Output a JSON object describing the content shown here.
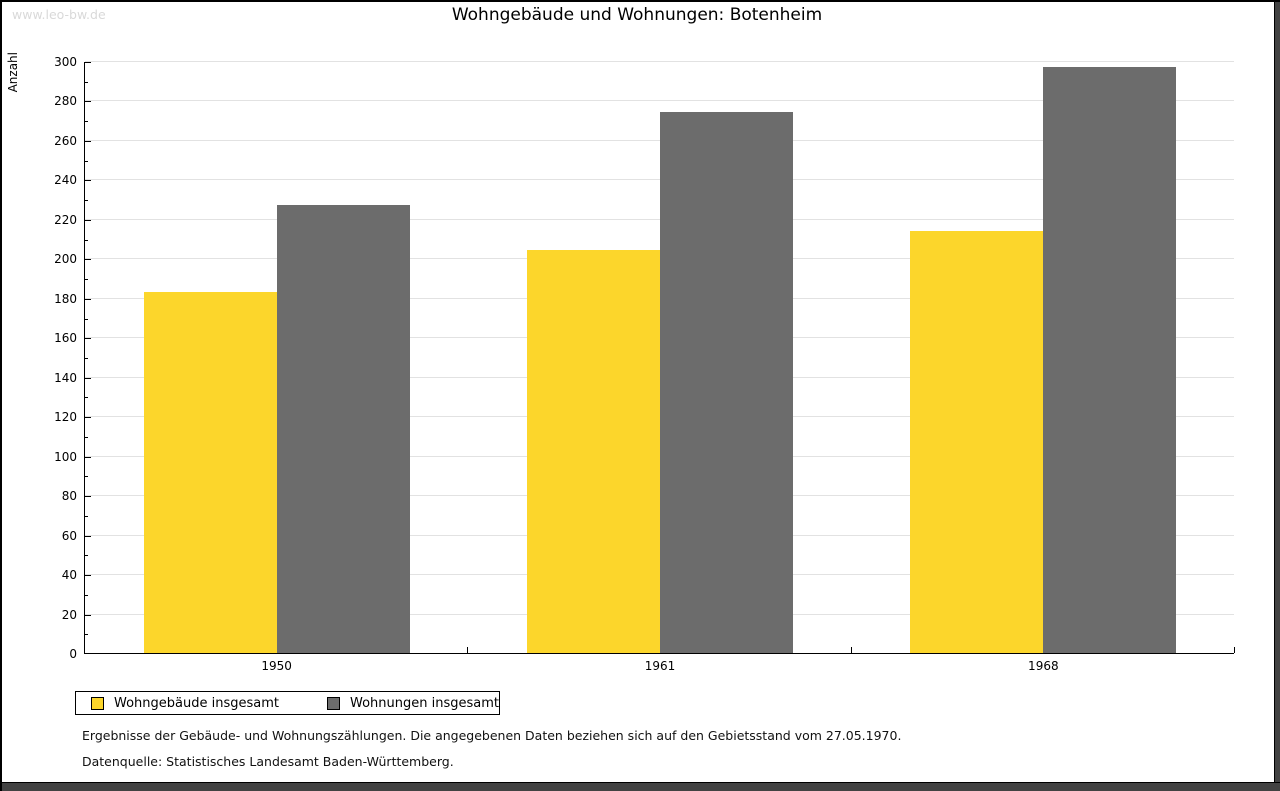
{
  "watermark": "www.leo-bw.de",
  "title": "Wohngebäude und Wohnungen: Botenheim",
  "chart_data": {
    "type": "bar",
    "title": "Wohngebäude und Wohnungen: Botenheim",
    "categories": [
      "1950",
      "1961",
      "1968"
    ],
    "series": [
      {
        "name": "Wohngebäude insgesamt",
        "color": "#FCD62B",
        "values": [
          183,
          204,
          214
        ]
      },
      {
        "name": "Wohnungen insgesamt",
        "color": "#6C6C6C",
        "values": [
          227,
          274,
          297
        ]
      }
    ],
    "xlabel": "",
    "ylabel": "Anzahl",
    "ylim": [
      0,
      300
    ],
    "ytick_step": 20,
    "yminor_step": 10,
    "grid": true,
    "gridline_color": "#e2e2e2",
    "legend_position": "bottom-left"
  },
  "footer": {
    "line1": "Ergebnisse der Gebäude- und Wohnungszählungen. Die angegebenen Daten beziehen sich auf den Gebietsstand vom 27.05.1970.",
    "line2": "Datenquelle: Statistisches Landesamt Baden-Württemberg."
  }
}
